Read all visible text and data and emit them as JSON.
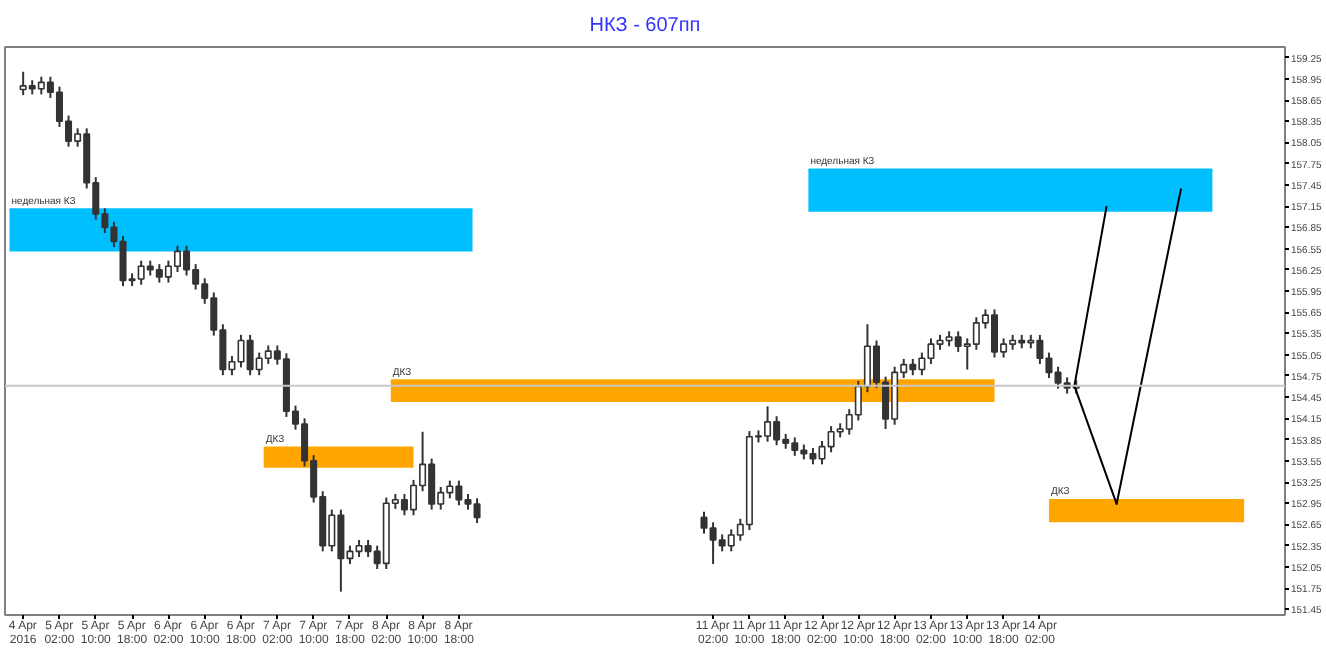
{
  "chart_data": {
    "type": "candlestick",
    "title": "НКЗ - 607пп",
    "x": [
      "2016-04-04T18:00",
      "2016-04-04T20:00",
      "2016-04-04T22:00",
      "2016-04-05T00:00",
      "2016-04-05T02:00",
      "2016-04-05T04:00",
      "2016-04-05T06:00",
      "2016-04-05T08:00",
      "2016-04-05T10:00",
      "2016-04-05T12:00",
      "2016-04-05T14:00",
      "2016-04-05T16:00",
      "2016-04-05T18:00",
      "2016-04-05T20:00",
      "2016-04-05T22:00",
      "2016-04-06T00:00",
      "2016-04-06T02:00",
      "2016-04-06T04:00",
      "2016-04-06T06:00",
      "2016-04-06T08:00",
      "2016-04-06T10:00",
      "2016-04-06T12:00",
      "2016-04-06T14:00",
      "2016-04-06T16:00",
      "2016-04-06T18:00",
      "2016-04-06T20:00",
      "2016-04-06T22:00",
      "2016-04-07T00:00",
      "2016-04-07T02:00",
      "2016-04-07T04:00",
      "2016-04-07T06:00",
      "2016-04-07T08:00",
      "2016-04-07T10:00",
      "2016-04-07T12:00",
      "2016-04-07T14:00",
      "2016-04-07T16:00",
      "2016-04-07T18:00",
      "2016-04-07T20:00",
      "2016-04-07T22:00",
      "2016-04-08T00:00",
      "2016-04-08T02:00",
      "2016-04-08T04:00",
      "2016-04-08T06:00",
      "2016-04-08T08:00",
      "2016-04-08T10:00",
      "2016-04-08T12:00",
      "2016-04-08T14:00",
      "2016-04-08T16:00",
      "2016-04-08T18:00",
      "2016-04-08T20:00",
      "2016-04-08T22:00",
      "2016-04-11T00:00",
      "2016-04-11T02:00",
      "2016-04-11T04:00",
      "2016-04-11T06:00",
      "2016-04-11T08:00",
      "2016-04-11T10:00",
      "2016-04-11T12:00",
      "2016-04-11T14:00",
      "2016-04-11T16:00",
      "2016-04-11T18:00",
      "2016-04-11T20:00",
      "2016-04-11T22:00",
      "2016-04-12T00:00",
      "2016-04-12T02:00",
      "2016-04-12T04:00",
      "2016-04-12T06:00",
      "2016-04-12T08:00",
      "2016-04-12T10:00",
      "2016-04-12T12:00",
      "2016-04-12T14:00",
      "2016-04-12T16:00",
      "2016-04-12T18:00",
      "2016-04-12T20:00",
      "2016-04-12T22:00",
      "2016-04-13T00:00",
      "2016-04-13T02:00",
      "2016-04-13T04:00",
      "2016-04-13T06:00",
      "2016-04-13T08:00",
      "2016-04-13T10:00",
      "2016-04-13T12:00",
      "2016-04-13T14:00",
      "2016-04-13T16:00",
      "2016-04-13T18:00",
      "2016-04-13T20:00",
      "2016-04-13T22:00",
      "2016-04-14T00:00",
      "2016-04-14T02:00",
      "2016-04-14T04:00",
      "2016-04-14T06:00",
      "2016-04-14T08:00",
      "2016-04-14T10:00"
    ],
    "color": "#333333",
    "ohlc": [
      [
        158.8,
        159.05,
        158.72,
        158.85
      ],
      [
        158.85,
        158.93,
        158.73,
        158.81
      ],
      [
        158.81,
        158.98,
        158.73,
        158.9
      ],
      [
        158.9,
        158.98,
        158.68,
        158.76
      ],
      [
        158.76,
        158.84,
        158.27,
        158.35
      ],
      [
        158.35,
        158.43,
        157.99,
        158.07
      ],
      [
        158.07,
        158.25,
        157.99,
        158.17
      ],
      [
        158.17,
        158.25,
        157.4,
        157.48
      ],
      [
        157.48,
        157.56,
        156.96,
        157.04
      ],
      [
        157.04,
        157.12,
        156.77,
        156.85
      ],
      [
        156.85,
        156.93,
        156.57,
        156.65
      ],
      [
        156.65,
        156.73,
        156.02,
        156.1
      ],
      [
        156.1,
        156.2,
        156.02,
        156.12
      ],
      [
        156.12,
        156.38,
        156.04,
        156.3
      ],
      [
        156.3,
        156.38,
        156.17,
        156.25
      ],
      [
        156.25,
        156.33,
        156.07,
        156.15
      ],
      [
        156.15,
        156.38,
        156.07,
        156.3
      ],
      [
        156.3,
        156.59,
        156.22,
        156.51
      ],
      [
        156.51,
        156.59,
        156.17,
        156.25
      ],
      [
        156.25,
        156.33,
        155.97,
        156.05
      ],
      [
        156.05,
        156.13,
        155.77,
        155.85
      ],
      [
        155.85,
        155.93,
        155.32,
        155.4
      ],
      [
        155.4,
        155.48,
        154.76,
        154.84
      ],
      [
        154.84,
        155.03,
        154.76,
        154.95
      ],
      [
        154.95,
        155.33,
        154.87,
        155.25
      ],
      [
        155.25,
        155.33,
        154.76,
        154.84
      ],
      [
        154.84,
        155.08,
        154.76,
        155.0
      ],
      [
        155.0,
        155.18,
        154.92,
        155.1
      ],
      [
        155.1,
        155.18,
        154.91,
        154.99
      ],
      [
        154.99,
        155.07,
        154.17,
        154.25
      ],
      [
        154.25,
        154.33,
        153.99,
        154.07
      ],
      [
        154.07,
        154.15,
        153.47,
        153.55
      ],
      [
        153.55,
        153.63,
        152.96,
        153.04
      ],
      [
        153.04,
        153.12,
        152.27,
        152.35
      ],
      [
        152.35,
        152.86,
        152.27,
        152.78
      ],
      [
        152.78,
        152.86,
        151.7,
        152.17
      ],
      [
        152.17,
        152.35,
        152.09,
        152.27
      ],
      [
        152.27,
        152.43,
        152.19,
        152.35
      ],
      [
        152.35,
        152.43,
        152.19,
        152.27
      ],
      [
        152.27,
        152.35,
        152.02,
        152.1
      ],
      [
        152.1,
        153.03,
        152.02,
        152.95
      ],
      [
        152.95,
        153.08,
        152.87,
        153.0
      ],
      [
        153.0,
        153.08,
        152.78,
        152.86
      ],
      [
        152.86,
        153.28,
        152.78,
        153.2
      ],
      [
        153.2,
        153.96,
        153.12,
        153.5
      ],
      [
        153.5,
        153.58,
        152.86,
        152.94
      ],
      [
        152.94,
        153.18,
        152.86,
        153.1
      ],
      [
        153.1,
        153.27,
        153.02,
        153.19
      ],
      [
        153.19,
        153.27,
        152.92,
        153.0
      ],
      [
        153.0,
        153.08,
        152.86,
        152.94
      ],
      [
        152.94,
        153.02,
        152.67,
        152.75
      ],
      [
        152.75,
        152.83,
        152.52,
        152.6
      ],
      [
        152.6,
        152.68,
        152.09,
        152.43
      ],
      [
        152.43,
        152.51,
        152.27,
        152.35
      ],
      [
        152.35,
        152.58,
        152.27,
        152.5
      ],
      [
        152.5,
        152.73,
        152.42,
        152.65
      ],
      [
        152.65,
        153.97,
        152.57,
        153.89
      ],
      [
        153.89,
        153.98,
        153.81,
        153.9
      ],
      [
        153.9,
        154.32,
        153.82,
        154.1
      ],
      [
        154.1,
        154.18,
        153.77,
        153.85
      ],
      [
        153.85,
        153.93,
        153.72,
        153.8
      ],
      [
        153.8,
        153.88,
        153.62,
        153.7
      ],
      [
        153.7,
        153.78,
        153.57,
        153.65
      ],
      [
        153.65,
        153.73,
        153.5,
        153.58
      ],
      [
        153.58,
        153.83,
        153.5,
        153.75
      ],
      [
        153.75,
        154.04,
        153.67,
        153.96
      ],
      [
        153.96,
        154.08,
        153.88,
        154.0
      ],
      [
        154.0,
        154.28,
        153.92,
        154.2
      ],
      [
        154.2,
        154.68,
        154.12,
        154.6
      ],
      [
        154.6,
        155.48,
        154.52,
        155.17
      ],
      [
        155.17,
        155.25,
        154.58,
        154.66
      ],
      [
        154.66,
        154.74,
        154.0,
        154.14
      ],
      [
        154.14,
        154.88,
        154.06,
        154.8
      ],
      [
        154.8,
        154.99,
        154.72,
        154.91
      ],
      [
        154.91,
        154.99,
        154.76,
        154.84
      ],
      [
        154.84,
        155.08,
        154.76,
        155.0
      ],
      [
        155.0,
        155.28,
        154.92,
        155.2
      ],
      [
        155.2,
        155.33,
        155.12,
        155.25
      ],
      [
        155.25,
        155.38,
        155.17,
        155.3
      ],
      [
        155.3,
        155.38,
        155.09,
        155.17
      ],
      [
        155.17,
        155.28,
        154.84,
        155.2
      ],
      [
        155.2,
        155.58,
        155.12,
        155.5
      ],
      [
        155.5,
        155.69,
        155.42,
        155.61
      ],
      [
        155.61,
        155.69,
        155.01,
        155.09
      ],
      [
        155.09,
        155.28,
        155.01,
        155.2
      ],
      [
        155.2,
        155.33,
        155.12,
        155.25
      ],
      [
        155.25,
        155.33,
        155.14,
        155.22
      ],
      [
        155.22,
        155.33,
        155.14,
        155.25
      ],
      [
        155.25,
        155.33,
        154.92,
        155.0
      ],
      [
        155.0,
        155.08,
        154.72,
        154.8
      ],
      [
        154.8,
        154.88,
        154.57,
        154.65
      ],
      [
        154.65,
        154.73,
        154.5,
        154.58
      ],
      [
        154.58,
        154.69,
        154.5,
        154.61
      ]
    ],
    "series": [
      {
        "type": "line",
        "name": "недельная КЗ",
        "color": "#00bfff",
        "x": [
          "2016-04-04T15:00",
          "2016-04-08T21:00"
        ],
        "values": [
          157.1,
          157.1
        ],
        "lower": [
          156.51,
          156.51
        ],
        "upper": [
          157.1,
          157.1
        ]
      },
      {
        "type": "line",
        "name": "недельная КЗ",
        "color": "#00bfff",
        "x": [
          "2016-04-11T23:00",
          "2016-04-15T16:00"
        ],
        "values": [
          157.66,
          157.66
        ],
        "lower": [
          157.07,
          157.07
        ],
        "upper": [
          157.66,
          157.66
        ]
      },
      {
        "type": "line",
        "name": "ДКЗ",
        "color": "#ffa500",
        "x": [
          "2016-04-06T23:00",
          "2016-04-08T08:00"
        ],
        "values": [
          153.73,
          153.73
        ],
        "lower": [
          153.45,
          153.45
        ],
        "upper": [
          153.73,
          153.73
        ]
      },
      {
        "type": "line",
        "name": "ДКЗ",
        "color": "#ffa500",
        "x": [
          "2016-04-08T03:00",
          "2016-04-13T16:00"
        ],
        "values": [
          154.68,
          154.68
        ],
        "lower": [
          154.38,
          154.38
        ],
        "upper": [
          154.68,
          154.68
        ]
      },
      {
        "type": "line",
        "name": "ДКЗ",
        "color": "#ffa500",
        "x": [
          "2016-04-14T04:00",
          "2016-04-15T23:00"
        ],
        "values": [
          152.99,
          152.99
        ],
        "lower": [
          152.68,
          152.68
        ],
        "upper": [
          152.99,
          152.99
        ]
      },
      {
        "type": "line",
        "color": "#000000",
        "x": [
          "2016-04-14T09:36",
          "2016-04-14T16:42"
        ],
        "values": [
          154.61,
          157.15
        ]
      },
      {
        "type": "line",
        "color": "#000000",
        "x": [
          "2016-04-14T09:36",
          "2016-04-14T18:54",
          "2016-04-15T09:06"
        ],
        "values": [
          154.61,
          152.94,
          157.4
        ]
      }
    ],
    "ref_lines": [
      {
        "axis": "y",
        "value": 154.61,
        "color": "#c8c8c8"
      }
    ],
    "xlim": [
      "2016-04-04T14:00",
      "2016-04-16T08:00"
    ],
    "xticks": [
      {
        "value": "2016-04-04T18:00",
        "label": "4 Apr 2016"
      },
      {
        "value": "2016-04-05T02:00",
        "label": "5 Apr 02:00"
      },
      {
        "value": "2016-04-05T10:00",
        "label": "5 Apr 10:00"
      },
      {
        "value": "2016-04-05T18:00",
        "label": "5 Apr 18:00"
      },
      {
        "value": "2016-04-06T02:00",
        "label": "6 Apr 02:00"
      },
      {
        "value": "2016-04-06T10:00",
        "label": "6 Apr 10:00"
      },
      {
        "value": "2016-04-06T18:00",
        "label": "6 Apr 18:00"
      },
      {
        "value": "2016-04-07T02:00",
        "label": "7 Apr 02:00"
      },
      {
        "value": "2016-04-07T10:00",
        "label": "7 Apr 10:00"
      },
      {
        "value": "2016-04-07T18:00",
        "label": "7 Apr 18:00"
      },
      {
        "value": "2016-04-08T02:00",
        "label": "8 Apr 02:00"
      },
      {
        "value": "2016-04-08T10:00",
        "label": "8 Apr 10:00"
      },
      {
        "value": "2016-04-08T18:00",
        "label": "8 Apr 18:00"
      },
      {
        "value": "2016-04-11T02:00",
        "label": "11 Apr 02:00"
      },
      {
        "value": "2016-04-11T10:00",
        "label": "11 Apr 10:00"
      },
      {
        "value": "2016-04-11T18:00",
        "label": "11 Apr 18:00"
      },
      {
        "value": "2016-04-12T02:00",
        "label": "12 Apr 02:00"
      },
      {
        "value": "2016-04-12T10:00",
        "label": "12 Apr 10:00"
      },
      {
        "value": "2016-04-12T18:00",
        "label": "12 Apr 18:00"
      },
      {
        "value": "2016-04-13T02:00",
        "label": "13 Apr 02:00"
      },
      {
        "value": "2016-04-13T10:00",
        "label": "13 Apr 10:00"
      },
      {
        "value": "2016-04-13T18:00",
        "label": "13 Apr 18:00"
      },
      {
        "value": "2016-04-14T02:00",
        "label": "14 Apr 02:00"
      }
    ],
    "ylim": [
      151.37,
      159.4
    ],
    "yticks": [
      151.45,
      151.75,
      152.05,
      152.35,
      152.65,
      152.95,
      153.25,
      153.55,
      153.85,
      154.15,
      154.45,
      154.75,
      155.05,
      155.35,
      155.65,
      155.95,
      156.25,
      156.55,
      156.85,
      157.15,
      157.45,
      157.75,
      158.05,
      158.35,
      158.65,
      158.95,
      159.25
    ],
    "grid": false
  }
}
